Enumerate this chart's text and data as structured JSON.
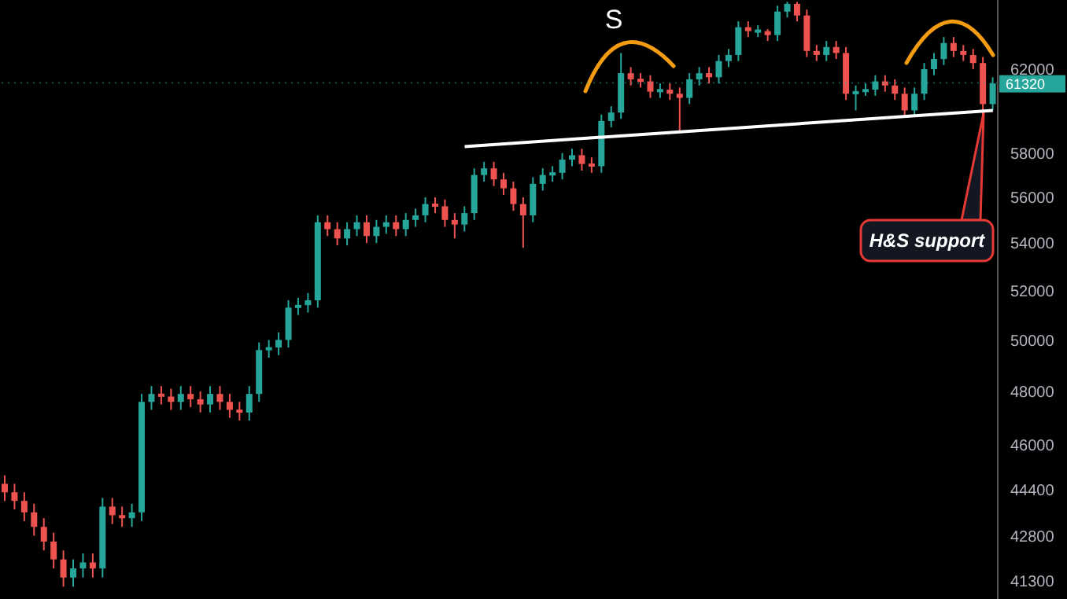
{
  "chart_data": {
    "type": "candlestick",
    "categories": [
      null,
      null,
      null,
      null,
      null,
      null,
      null,
      null,
      null,
      null,
      null,
      null,
      null,
      null,
      null,
      null,
      null,
      null,
      null,
      null,
      null,
      null,
      null,
      null,
      null,
      null,
      null,
      null,
      null,
      null,
      null,
      null,
      null,
      null,
      null,
      null,
      null,
      null,
      null,
      null,
      null,
      null,
      null,
      null,
      null,
      null,
      null,
      null,
      null,
      null,
      null,
      null,
      null,
      null,
      null,
      null,
      null,
      null,
      null,
      null,
      null,
      null,
      null,
      null,
      null,
      null,
      null,
      null,
      null,
      null,
      null,
      null,
      null,
      null,
      null,
      null,
      null,
      null,
      null,
      null,
      null,
      null,
      null,
      null,
      null,
      null,
      null,
      null,
      null,
      null,
      null,
      null,
      null,
      null,
      null,
      null,
      null,
      null,
      null,
      null,
      null,
      null
    ],
    "ohlc": [
      [
        44600,
        44900,
        44000,
        44300
      ],
      [
        44300,
        44600,
        43700,
        44000
      ],
      [
        44000,
        44300,
        43300,
        43600
      ],
      [
        43600,
        43900,
        42800,
        43100
      ],
      [
        43100,
        43400,
        42300,
        42600
      ],
      [
        42600,
        42900,
        41700,
        42000
      ],
      [
        42000,
        42300,
        41100,
        41400
      ],
      [
        41400,
        42000,
        41100,
        41700
      ],
      [
        41700,
        42200,
        41400,
        41900
      ],
      [
        41900,
        42200,
        41400,
        41700
      ],
      [
        41700,
        44100,
        41400,
        43800
      ],
      [
        43800,
        44100,
        43200,
        43500
      ],
      [
        43500,
        43800,
        43100,
        43400
      ],
      [
        43400,
        43900,
        43100,
        43600
      ],
      [
        43600,
        47900,
        43300,
        47600
      ],
      [
        47600,
        48200,
        47300,
        47900
      ],
      [
        47900,
        48200,
        47500,
        47800
      ],
      [
        47800,
        48100,
        47300,
        47600
      ],
      [
        47600,
        48200,
        47300,
        47900
      ],
      [
        47900,
        48200,
        47400,
        47700
      ],
      [
        47700,
        48000,
        47200,
        47500
      ],
      [
        47500,
        48200,
        47200,
        47900
      ],
      [
        47900,
        48200,
        47300,
        47600
      ],
      [
        47600,
        47900,
        47000,
        47300
      ],
      [
        47300,
        47600,
        46900,
        47200
      ],
      [
        47200,
        48200,
        46900,
        47900
      ],
      [
        47900,
        49900,
        47600,
        49600
      ],
      [
        49600,
        50000,
        49300,
        49700
      ],
      [
        49700,
        50300,
        49400,
        50000
      ],
      [
        50000,
        51600,
        49700,
        51300
      ],
      [
        51300,
        51700,
        51000,
        51400
      ],
      [
        51400,
        51900,
        51100,
        51600
      ],
      [
        51600,
        55200,
        51300,
        54900
      ],
      [
        54900,
        55200,
        54300,
        54600
      ],
      [
        54600,
        54900,
        53900,
        54200
      ],
      [
        54200,
        54900,
        53900,
        54600
      ],
      [
        54600,
        55200,
        54300,
        54900
      ],
      [
        54900,
        55200,
        54000,
        54300
      ],
      [
        54300,
        55000,
        54000,
        54700
      ],
      [
        54700,
        55200,
        54400,
        54900
      ],
      [
        54900,
        55200,
        54300,
        54600
      ],
      [
        54600,
        55300,
        54300,
        55000
      ],
      [
        55000,
        55500,
        54700,
        55200
      ],
      [
        55200,
        56000,
        54900,
        55700
      ],
      [
        55700,
        56000,
        55300,
        55600
      ],
      [
        55600,
        55900,
        54700,
        55000
      ],
      [
        55000,
        55300,
        54200,
        54800
      ],
      [
        54800,
        55600,
        54500,
        55300
      ],
      [
        55300,
        57300,
        55000,
        57000
      ],
      [
        57000,
        57600,
        56700,
        57300
      ],
      [
        57300,
        57600,
        56500,
        56800
      ],
      [
        56800,
        57100,
        56100,
        56400
      ],
      [
        56400,
        56700,
        55400,
        55700
      ],
      [
        55700,
        56000,
        53800,
        55200
      ],
      [
        55200,
        56900,
        54900,
        56600
      ],
      [
        56600,
        57300,
        56300,
        57000
      ],
      [
        57000,
        57400,
        56700,
        57100
      ],
      [
        57100,
        58000,
        56800,
        57700
      ],
      [
        57700,
        58200,
        57400,
        57900
      ],
      [
        57900,
        58200,
        57200,
        57500
      ],
      [
        57500,
        57800,
        57100,
        57400
      ],
      [
        57400,
        59800,
        57100,
        59500
      ],
      [
        59500,
        60200,
        59200,
        59900
      ],
      [
        59900,
        62800,
        59600,
        61800
      ],
      [
        61800,
        62100,
        61200,
        61500
      ],
      [
        61500,
        61800,
        61100,
        61400
      ],
      [
        61400,
        61700,
        60600,
        60900
      ],
      [
        60900,
        61300,
        60600,
        61000
      ],
      [
        61000,
        61300,
        60500,
        60800
      ],
      [
        60800,
        61100,
        59000,
        60600
      ],
      [
        60600,
        61800,
        60300,
        61500
      ],
      [
        61500,
        62100,
        61200,
        61800
      ],
      [
        61800,
        62100,
        61300,
        61600
      ],
      [
        61600,
        62700,
        61300,
        62400
      ],
      [
        62400,
        63000,
        62100,
        62700
      ],
      [
        62700,
        64400,
        62400,
        64100
      ],
      [
        64100,
        64400,
        63600,
        63900
      ],
      [
        63900,
        64200,
        63600,
        63900
      ],
      [
        63900,
        64000,
        63400,
        63700
      ],
      [
        63700,
        65200,
        63400,
        64900
      ],
      [
        64900,
        65400,
        64600,
        65300
      ],
      [
        65300,
        65400,
        64400,
        64700
      ],
      [
        64700,
        65000,
        62600,
        62900
      ],
      [
        62900,
        63200,
        62400,
        62700
      ],
      [
        62700,
        63400,
        62400,
        63100
      ],
      [
        63100,
        63400,
        62500,
        62800
      ],
      [
        62800,
        63100,
        60500,
        60800
      ],
      [
        60800,
        61200,
        60000,
        60900
      ],
      [
        60900,
        61300,
        60700,
        61000
      ],
      [
        61000,
        61700,
        60700,
        61400
      ],
      [
        61400,
        61700,
        60900,
        61200
      ],
      [
        61200,
        61500,
        60500,
        60800
      ],
      [
        60800,
        61100,
        59700,
        60000
      ],
      [
        60000,
        61100,
        59700,
        60800
      ],
      [
        60800,
        62300,
        60500,
        62000
      ],
      [
        62000,
        62800,
        61700,
        62500
      ],
      [
        62500,
        63600,
        62200,
        63300
      ],
      [
        63300,
        63600,
        62600,
        62900
      ],
      [
        62900,
        63200,
        62400,
        62700
      ],
      [
        62700,
        63000,
        62000,
        62300
      ],
      [
        62300,
        62600,
        59700,
        60300
      ],
      [
        60300,
        61600,
        60000,
        61300
      ]
    ],
    "series": [
      {
        "type": "line",
        "color": "#ffffff",
        "values": [
          null,
          null,
          null,
          null,
          null,
          null,
          null,
          null,
          null,
          null,
          null,
          null,
          null,
          null,
          null,
          null,
          null,
          null,
          null,
          null,
          null,
          null,
          null,
          null,
          null,
          null,
          null,
          null,
          null,
          null,
          null,
          null,
          null,
          null,
          null,
          null,
          null,
          null,
          null,
          null,
          null,
          null,
          null,
          null,
          null,
          null,
          null,
          58300,
          null,
          null,
          null,
          null,
          null,
          null,
          null,
          null,
          null,
          null,
          null,
          null,
          null,
          null,
          null,
          null,
          null,
          null,
          null,
          null,
          null,
          null,
          null,
          null,
          null,
          null,
          null,
          null,
          null,
          null,
          null,
          null,
          null,
          null,
          null,
          null,
          null,
          null,
          null,
          null,
          null,
          null,
          null,
          null,
          null,
          null,
          null,
          null,
          null,
          null,
          null,
          null,
          null,
          60000
        ]
      }
    ],
    "ylim": [
      40700,
      65500
    ],
    "yticks": [
      62000,
      58000,
      56000,
      54000,
      52000,
      50000,
      48000,
      46000,
      44400,
      42800,
      41300
    ],
    "log": "y",
    "tick_labels": "y",
    "ref_lines": [
      {
        "axis": "y",
        "value": 61320,
        "label": "61320",
        "color": "#26a69a",
        "line_style": "dotted"
      }
    ],
    "annotations": [
      "S",
      "H&S support"
    ]
  }
}
